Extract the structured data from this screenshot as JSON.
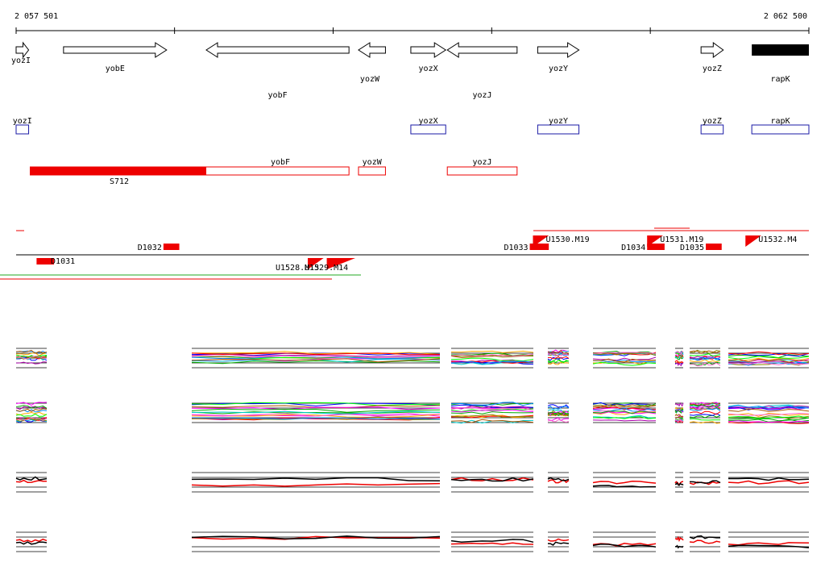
{
  "ruler": {
    "start_label": "2 057 501",
    "end_label": "2 062 500",
    "start_bp": 2057501,
    "end_bp": 2062500,
    "tick_step_bp": 1000
  },
  "colors": {
    "gene_outline": "#000000",
    "cds_outline": "#1a1aa6",
    "transcript": "#ee0000",
    "axis": "#000000",
    "green_line": "#22aa22"
  },
  "genes": [
    {
      "name": "yozI",
      "strand": "+",
      "start": 2057501,
      "end": 2057580,
      "row": 0,
      "label_pos": "left"
    },
    {
      "name": "yobE",
      "strand": "+",
      "start": 2057800,
      "end": 2058450,
      "row": 0,
      "label_pos": "below"
    },
    {
      "name": "yobF",
      "strand": "-",
      "start": 2058700,
      "end": 2059600,
      "row": 0,
      "label_pos": "below-far"
    },
    {
      "name": "yozW",
      "strand": "-",
      "start": 2059660,
      "end": 2059830,
      "row": 0,
      "label_pos": "below"
    },
    {
      "name": "yozX",
      "strand": "+",
      "start": 2059990,
      "end": 2060210,
      "row": 0,
      "label_pos": "below"
    },
    {
      "name": "yozJ",
      "strand": "-",
      "start": 2060220,
      "end": 2060660,
      "row": 0,
      "label_pos": "below-far"
    },
    {
      "name": "yozY",
      "strand": "+",
      "start": 2060790,
      "end": 2061050,
      "row": 0,
      "label_pos": "below"
    },
    {
      "name": "yozZ",
      "strand": "+",
      "start": 2061820,
      "end": 2061960,
      "row": 0,
      "label_pos": "below"
    },
    {
      "name": "rapK",
      "strand": "block",
      "start": 2062140,
      "end": 2062500,
      "row": 0,
      "label_pos": "below-far"
    }
  ],
  "cds": [
    {
      "name": "yozI",
      "start": 2057501,
      "end": 2057580
    },
    {
      "name": "yozX",
      "start": 2059990,
      "end": 2060210
    },
    {
      "name": "yozY",
      "start": 2060790,
      "end": 2061050
    },
    {
      "name": "yozZ",
      "start": 2061820,
      "end": 2061960
    },
    {
      "name": "rapK",
      "start": 2062140,
      "end": 2062500
    }
  ],
  "transcripts": [
    {
      "name": "yobF",
      "start": 2057590,
      "end": 2059600,
      "filled_until": 2058700,
      "sub_label": "S712"
    },
    {
      "name": "yozW",
      "start": 2059660,
      "end": 2059830,
      "filled_until": null,
      "sub_label": ""
    },
    {
      "name": "yozJ",
      "start": 2060220,
      "end": 2060660,
      "filled_until": null,
      "sub_label": ""
    }
  ],
  "features": [
    {
      "label": "D1031",
      "start": 2057630,
      "end": 2057740,
      "side": "below"
    },
    {
      "label": "D1032",
      "start": 2058430,
      "end": 2058530,
      "side": "above"
    },
    {
      "label": "U1528.M13",
      "start": 2059340,
      "end": 2059440,
      "side": "below"
    },
    {
      "label": "U1529.M14",
      "start": 2059460,
      "end": 2059640,
      "side": "below"
    },
    {
      "label": "D1033",
      "start": 2060740,
      "end": 2060860,
      "side": "above"
    },
    {
      "label": "U1530.M19",
      "start": 2060760,
      "end": 2060860,
      "side": "above"
    },
    {
      "label": "D1034",
      "start": 2061480,
      "end": 2061590,
      "side": "above"
    },
    {
      "label": "U1531.M19",
      "start": 2061480,
      "end": 2061580,
      "side": "above"
    },
    {
      "label": "D1035",
      "start": 2061850,
      "end": 2061950,
      "side": "above"
    },
    {
      "label": "U1532.M4",
      "start": 2062100,
      "end": 2062200,
      "side": "above"
    }
  ]
}
